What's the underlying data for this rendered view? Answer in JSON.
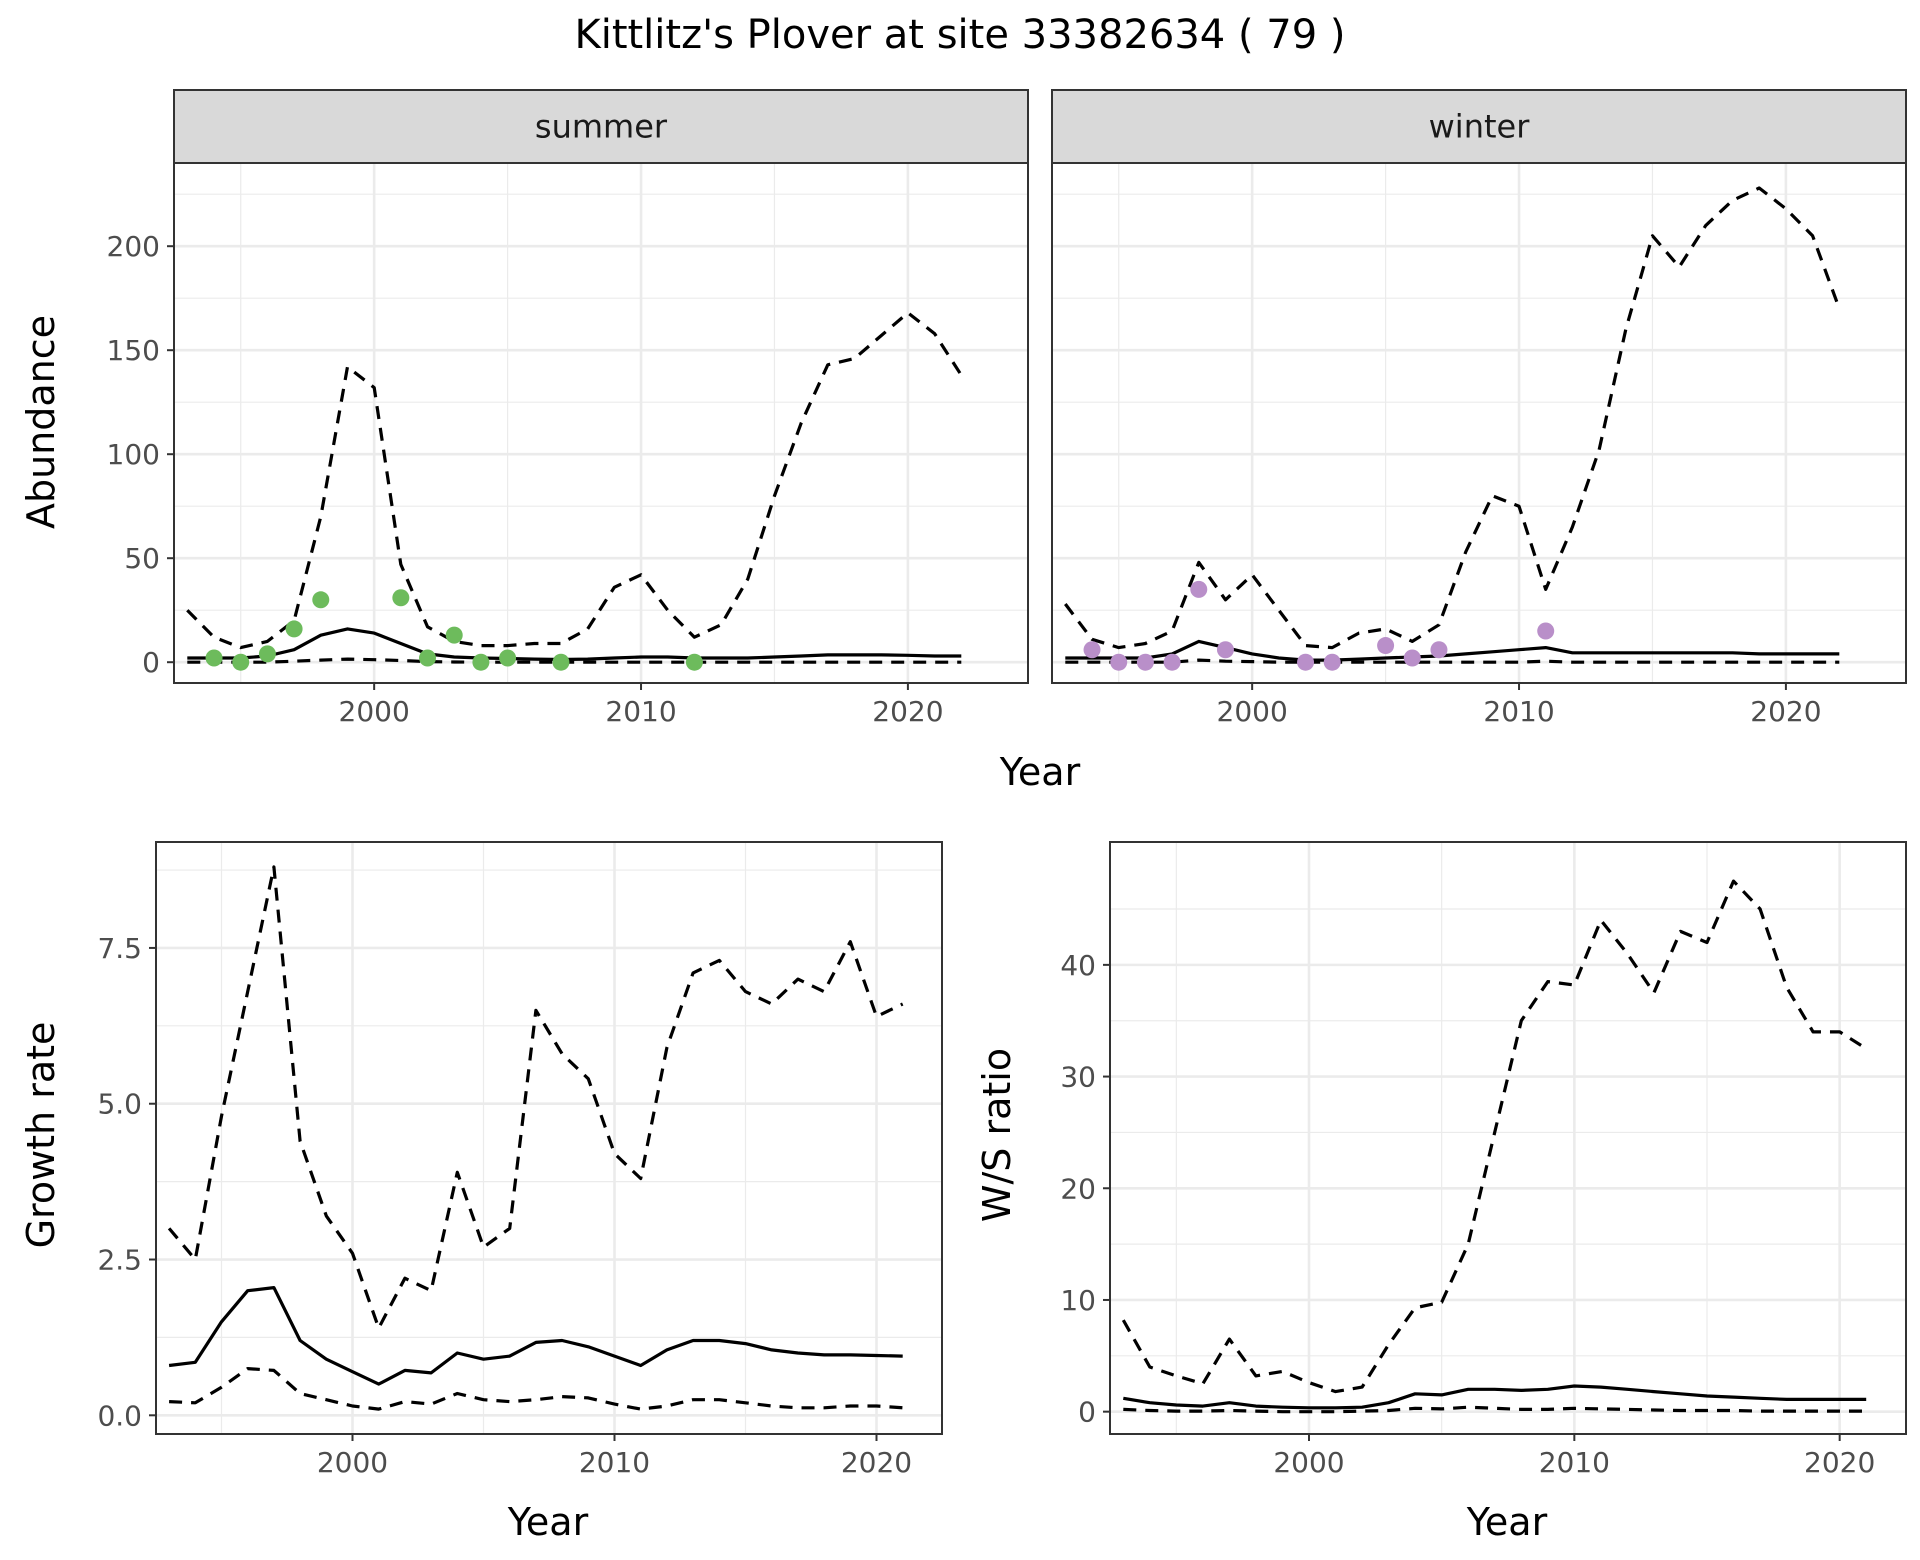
{
  "figure": {
    "title": "Kittlitz's Plover at site 33382634 ( 79 )"
  },
  "colors": {
    "summer_points": "#6dbb5c",
    "winter_points": "#b98fc9",
    "strip_fill": "#d9d9d9",
    "line": "#000000",
    "grid": "#ebebeb"
  },
  "chart_data": [
    {
      "type": "line",
      "panel": "summer",
      "strip_label": "summer",
      "xlabel": "Year",
      "ylabel": "Abundance",
      "xlim": [
        1992.5,
        2024.5
      ],
      "ylim": [
        -10,
        240
      ],
      "xticks": [
        2000,
        2010,
        2020
      ],
      "yticks": [
        0,
        50,
        100,
        150,
        200
      ],
      "grid": true,
      "series": [
        {
          "role": "estimate",
          "style": "solid",
          "x": [
            1993,
            1994,
            1995,
            1996,
            1997,
            1998,
            1999,
            2000,
            2001,
            2002,
            2003,
            2004,
            2005,
            2006,
            2007,
            2008,
            2009,
            2010,
            2011,
            2012,
            2013,
            2014,
            2015,
            2016,
            2017,
            2018,
            2019,
            2020,
            2021,
            2022
          ],
          "y": [
            2,
            2,
            2,
            3,
            6,
            13,
            16,
            14,
            9,
            4,
            2.5,
            2,
            1.8,
            1.5,
            1.3,
            1.5,
            2,
            2.5,
            2.5,
            2,
            2,
            2,
            2.5,
            3,
            3.5,
            3.5,
            3.5,
            3.3,
            3,
            3
          ]
        },
        {
          "role": "upper",
          "style": "dashed",
          "x": [
            1993,
            1994,
            1995,
            1996,
            1997,
            1998,
            1999,
            2000,
            2001,
            2002,
            2003,
            2004,
            2005,
            2006,
            2007,
            2008,
            2009,
            2010,
            2011,
            2012,
            2013,
            2014,
            2015,
            2016,
            2017,
            2018,
            2019,
            2020,
            2021,
            2022
          ],
          "y": [
            25,
            12,
            7,
            10,
            20,
            70,
            142,
            132,
            47,
            17,
            10,
            8,
            8,
            9,
            9,
            16,
            36,
            42,
            25,
            12,
            18,
            40,
            80,
            115,
            143,
            146,
            157,
            168,
            158,
            138
          ]
        },
        {
          "role": "lower",
          "style": "dashed",
          "x": [
            1993,
            1994,
            1995,
            1996,
            1997,
            1998,
            1999,
            2000,
            2001,
            2002,
            2003,
            2004,
            2005,
            2006,
            2007,
            2008,
            2009,
            2010,
            2011,
            2012,
            2013,
            2014,
            2015,
            2016,
            2017,
            2018,
            2019,
            2020,
            2021,
            2022
          ],
          "y": [
            0,
            0,
            0,
            0,
            0.5,
            1,
            1.5,
            1.2,
            0.8,
            0.3,
            0.1,
            0,
            0,
            0,
            0,
            0,
            0,
            0,
            0,
            0,
            0,
            0,
            0,
            0,
            0,
            0,
            0,
            0,
            0,
            0
          ]
        }
      ],
      "points": {
        "x": [
          1994,
          1995,
          1996,
          1997,
          1998,
          2001,
          2002,
          2003,
          2004,
          2005,
          2007,
          2012
        ],
        "y": [
          2,
          0,
          4,
          16,
          30,
          31,
          2,
          13,
          0,
          2,
          0,
          0
        ]
      }
    },
    {
      "type": "line",
      "panel": "winter",
      "strip_label": "winter",
      "xlabel": "Year",
      "ylabel": "Abundance",
      "xlim": [
        1992.5,
        2024.5
      ],
      "ylim": [
        -10,
        240
      ],
      "xticks": [
        2000,
        2010,
        2020
      ],
      "yticks": [
        0,
        50,
        100,
        150,
        200
      ],
      "grid": true,
      "series": [
        {
          "role": "estimate",
          "style": "solid",
          "x": [
            1993,
            1994,
            1995,
            1996,
            1997,
            1998,
            1999,
            2000,
            2001,
            2002,
            2003,
            2004,
            2005,
            2006,
            2007,
            2008,
            2009,
            2010,
            2011,
            2012,
            2013,
            2014,
            2015,
            2016,
            2017,
            2018,
            2019,
            2020,
            2021,
            2022
          ],
          "y": [
            2,
            2,
            2,
            2,
            4,
            10,
            7,
            4,
            2,
            1,
            1,
            1.5,
            2,
            2.5,
            3,
            4,
            5,
            6,
            7,
            4.5,
            4.5,
            4.5,
            4.5,
            4.5,
            4.5,
            4.5,
            4,
            4,
            4,
            4
          ]
        },
        {
          "role": "upper",
          "style": "dashed",
          "x": [
            1993,
            1994,
            1995,
            1996,
            1997,
            1998,
            1999,
            2000,
            2001,
            2002,
            2003,
            2004,
            2005,
            2006,
            2007,
            2008,
            2009,
            2010,
            2011,
            2012,
            2013,
            2014,
            2015,
            2016,
            2017,
            2018,
            2019,
            2020,
            2021,
            2022
          ],
          "y": [
            28,
            11,
            7,
            9,
            15,
            48,
            30,
            42,
            25,
            8,
            7,
            14,
            16,
            10,
            18,
            53,
            80,
            75,
            35,
            65,
            102,
            160,
            205,
            190,
            210,
            222,
            228,
            218,
            205,
            170
          ]
        },
        {
          "role": "lower",
          "style": "dashed",
          "x": [
            1993,
            1994,
            1995,
            1996,
            1997,
            1998,
            1999,
            2000,
            2001,
            2002,
            2003,
            2004,
            2005,
            2006,
            2007,
            2008,
            2009,
            2010,
            2011,
            2012,
            2013,
            2014,
            2015,
            2016,
            2017,
            2018,
            2019,
            2020,
            2021,
            2022
          ],
          "y": [
            0,
            0,
            0,
            0,
            0,
            1,
            0.5,
            0.3,
            0,
            0,
            0,
            0,
            0,
            0,
            0,
            0,
            0,
            0,
            0.5,
            0,
            0,
            0,
            0,
            0,
            0,
            0,
            0,
            0,
            0,
            0
          ]
        }
      ],
      "points": {
        "x": [
          1994,
          1995,
          1996,
          1997,
          1998,
          1999,
          2002,
          2003,
          2005,
          2006,
          2007,
          2011
        ],
        "y": [
          6,
          0,
          0,
          0,
          35,
          6,
          0,
          0,
          8,
          2,
          6,
          15
        ]
      }
    },
    {
      "type": "line",
      "panel": "growth",
      "xlabel": "Year",
      "ylabel": "Growth rate",
      "xlim": [
        1992.5,
        2022.5
      ],
      "ylim": [
        -0.3,
        9.2
      ],
      "xticks": [
        2000,
        2010,
        2020
      ],
      "yticks": [
        0.0,
        2.5,
        5.0,
        7.5
      ],
      "ytick_labels": [
        "0.0",
        "2.5",
        "5.0",
        "7.5"
      ],
      "grid": true,
      "series": [
        {
          "role": "estimate",
          "style": "solid",
          "x": [
            1993,
            1994,
            1995,
            1996,
            1997,
            1998,
            1999,
            2000,
            2001,
            2002,
            2003,
            2004,
            2005,
            2006,
            2007,
            2008,
            2009,
            2010,
            2011,
            2012,
            2013,
            2014,
            2015,
            2016,
            2017,
            2018,
            2019,
            2020,
            2021
          ],
          "y": [
            0.8,
            0.85,
            1.5,
            2.0,
            2.05,
            1.2,
            0.9,
            0.7,
            0.5,
            0.72,
            0.68,
            1.0,
            0.9,
            0.95,
            1.17,
            1.2,
            1.1,
            0.95,
            0.8,
            1.05,
            1.2,
            1.2,
            1.15,
            1.05,
            1.0,
            0.97,
            0.97,
            0.96,
            0.95
          ]
        },
        {
          "role": "upper",
          "style": "dashed",
          "x": [
            1993,
            1994,
            1995,
            1996,
            1997,
            1998,
            1999,
            2000,
            2001,
            2002,
            2003,
            2004,
            2005,
            2006,
            2007,
            2008,
            2009,
            2010,
            2011,
            2012,
            2013,
            2014,
            2015,
            2016,
            2017,
            2018,
            2019,
            2020,
            2021
          ],
          "y": [
            3.0,
            2.5,
            4.8,
            6.8,
            8.8,
            4.4,
            3.2,
            2.6,
            1.4,
            2.2,
            2.0,
            3.9,
            2.7,
            3.0,
            6.5,
            5.8,
            5.4,
            4.2,
            3.8,
            5.9,
            7.1,
            7.3,
            6.8,
            6.6,
            7.0,
            6.8,
            7.6,
            6.4,
            6.6
          ]
        },
        {
          "role": "lower",
          "style": "dashed",
          "x": [
            1993,
            1994,
            1995,
            1996,
            1997,
            1998,
            1999,
            2000,
            2001,
            2002,
            2003,
            2004,
            2005,
            2006,
            2007,
            2008,
            2009,
            2010,
            2011,
            2012,
            2013,
            2014,
            2015,
            2016,
            2017,
            2018,
            2019,
            2020,
            2021
          ],
          "y": [
            0.22,
            0.2,
            0.45,
            0.75,
            0.72,
            0.35,
            0.25,
            0.15,
            0.1,
            0.22,
            0.18,
            0.35,
            0.25,
            0.22,
            0.25,
            0.3,
            0.28,
            0.18,
            0.1,
            0.15,
            0.25,
            0.25,
            0.2,
            0.15,
            0.12,
            0.12,
            0.15,
            0.15,
            0.12
          ]
        }
      ]
    },
    {
      "type": "line",
      "panel": "ws_ratio",
      "xlabel": "Year",
      "ylabel": "W/S ratio",
      "xlim": [
        1992.5,
        2022.5
      ],
      "ylim": [
        -2,
        51
      ],
      "xticks": [
        2000,
        2010,
        2020
      ],
      "yticks": [
        0,
        10,
        20,
        30,
        40
      ],
      "grid": true,
      "series": [
        {
          "role": "estimate",
          "style": "solid",
          "x": [
            1993,
            1994,
            1995,
            1996,
            1997,
            1998,
            1999,
            2000,
            2001,
            2002,
            2003,
            2004,
            2005,
            2006,
            2007,
            2008,
            2009,
            2010,
            2011,
            2012,
            2013,
            2014,
            2015,
            2016,
            2017,
            2018,
            2019,
            2020,
            2021
          ],
          "y": [
            1.2,
            0.8,
            0.6,
            0.5,
            0.8,
            0.5,
            0.4,
            0.35,
            0.35,
            0.4,
            0.8,
            1.6,
            1.5,
            2.0,
            2.0,
            1.9,
            2.0,
            2.3,
            2.2,
            2.0,
            1.8,
            1.6,
            1.4,
            1.3,
            1.2,
            1.1,
            1.1,
            1.1,
            1.1
          ]
        },
        {
          "role": "upper",
          "style": "dashed",
          "x": [
            1993,
            1994,
            1995,
            1996,
            1997,
            1998,
            1999,
            2000,
            2001,
            2002,
            2003,
            2004,
            2005,
            2006,
            2007,
            2008,
            2009,
            2010,
            2011,
            2012,
            2013,
            2014,
            2015,
            2016,
            2017,
            2018,
            2019,
            2020,
            2021
          ],
          "y": [
            8.2,
            4.0,
            3.2,
            2.5,
            6.5,
            3.2,
            3.6,
            2.6,
            1.8,
            2.2,
            6.0,
            9.3,
            9.8,
            15.0,
            25.0,
            35.0,
            38.5,
            38.2,
            44.0,
            41.0,
            37.5,
            43.0,
            42.0,
            47.5,
            45.0,
            38.0,
            34.0,
            34.0,
            32.5
          ]
        },
        {
          "role": "lower",
          "style": "dashed",
          "x": [
            1993,
            1994,
            1995,
            1996,
            1997,
            1998,
            1999,
            2000,
            2001,
            2002,
            2003,
            2004,
            2005,
            2006,
            2007,
            2008,
            2009,
            2010,
            2011,
            2012,
            2013,
            2014,
            2015,
            2016,
            2017,
            2018,
            2019,
            2020,
            2021
          ],
          "y": [
            0.2,
            0.1,
            0.05,
            0.05,
            0.1,
            0.05,
            0.0,
            0.0,
            0.0,
            0.05,
            0.1,
            0.3,
            0.25,
            0.4,
            0.3,
            0.2,
            0.2,
            0.3,
            0.25,
            0.2,
            0.15,
            0.1,
            0.1,
            0.1,
            0.05,
            0.05,
            0.05,
            0.05,
            0.05
          ]
        }
      ]
    }
  ]
}
